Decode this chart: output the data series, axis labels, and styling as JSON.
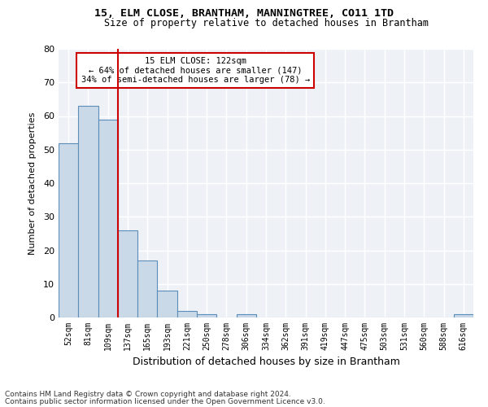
{
  "title1": "15, ELM CLOSE, BRANTHAM, MANNINGTREE, CO11 1TD",
  "title2": "Size of property relative to detached houses in Brantham",
  "xlabel": "Distribution of detached houses by size in Brantham",
  "ylabel": "Number of detached properties",
  "bar_categories": [
    "52sqm",
    "81sqm",
    "109sqm",
    "137sqm",
    "165sqm",
    "193sqm",
    "221sqm",
    "250sqm",
    "278sqm",
    "306sqm",
    "334sqm",
    "362sqm",
    "391sqm",
    "419sqm",
    "447sqm",
    "475sqm",
    "503sqm",
    "531sqm",
    "560sqm",
    "588sqm",
    "616sqm"
  ],
  "bar_values": [
    52,
    63,
    59,
    26,
    17,
    8,
    2,
    1,
    0,
    1,
    0,
    0,
    0,
    0,
    0,
    0,
    0,
    0,
    0,
    0,
    1
  ],
  "bar_color": "#c9d9e8",
  "bar_edge_color": "#5b8db8",
  "bg_color": "#eef2f7",
  "grid_color": "#ffffff",
  "vline_x_index": 2,
  "vline_color": "#cc0000",
  "annotation_text": "15 ELM CLOSE: 122sqm\n← 64% of detached houses are smaller (147)\n34% of semi-detached houses are larger (78) →",
  "annotation_box_color": "#cc0000",
  "ylim": [
    0,
    80
  ],
  "yticks": [
    0,
    10,
    20,
    30,
    40,
    50,
    60,
    70,
    80
  ],
  "footnote1": "Contains HM Land Registry data © Crown copyright and database right 2024.",
  "footnote2": "Contains public sector information licensed under the Open Government Licence v3.0."
}
